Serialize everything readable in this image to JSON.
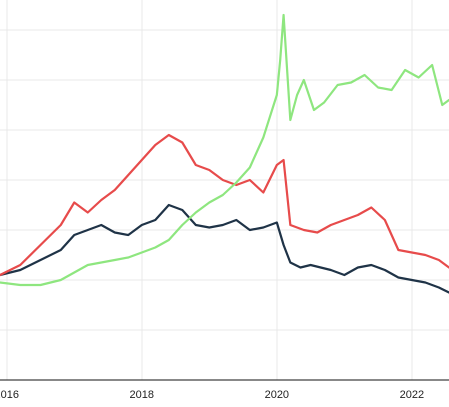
{
  "chart_data": {
    "type": "line",
    "title": "",
    "xlabel": "",
    "ylabel": "",
    "grid": true,
    "legend": "none",
    "x_ticks": [
      "2016",
      "2018",
      "2020",
      "2022"
    ],
    "x_tick_values": [
      2016,
      2018,
      2020,
      2022
    ],
    "xlim": [
      2015.9,
      2022.55
    ],
    "ylim": [
      0,
      7.6
    ],
    "colors": {
      "navy": "#1f3347",
      "red": "#e74b4b",
      "green": "#8ee67f",
      "grid": "#e9e9e9",
      "axis": "#111111",
      "tick": "#222222"
    },
    "series": [
      {
        "color": "#1f3347",
        "x": [
          2015.9,
          2016.2,
          2016.5,
          2016.8,
          2017.0,
          2017.2,
          2017.4,
          2017.6,
          2017.8,
          2018.0,
          2018.2,
          2018.4,
          2018.6,
          2018.8,
          2019.0,
          2019.2,
          2019.4,
          2019.6,
          2019.8,
          2020.0,
          2020.1,
          2020.2,
          2020.35,
          2020.5,
          2020.8,
          2021.0,
          2021.2,
          2021.4,
          2021.6,
          2021.8,
          2022.0,
          2022.2,
          2022.4,
          2022.55
        ],
        "values": [
          2.1,
          2.2,
          2.4,
          2.6,
          2.9,
          3.0,
          3.1,
          2.95,
          2.9,
          3.1,
          3.2,
          3.5,
          3.4,
          3.1,
          3.05,
          3.1,
          3.2,
          3.0,
          3.05,
          3.15,
          2.7,
          2.35,
          2.25,
          2.3,
          2.2,
          2.1,
          2.25,
          2.3,
          2.2,
          2.05,
          2.0,
          1.95,
          1.85,
          1.75
        ]
      },
      {
        "color": "#e74b4b",
        "x": [
          2015.9,
          2016.2,
          2016.5,
          2016.8,
          2017.0,
          2017.2,
          2017.4,
          2017.6,
          2017.8,
          2018.0,
          2018.2,
          2018.4,
          2018.6,
          2018.8,
          2019.0,
          2019.2,
          2019.4,
          2019.6,
          2019.8,
          2020.0,
          2020.1,
          2020.2,
          2020.4,
          2020.6,
          2020.8,
          2021.0,
          2021.2,
          2021.4,
          2021.6,
          2021.8,
          2022.0,
          2022.2,
          2022.4,
          2022.55
        ],
        "values": [
          2.1,
          2.3,
          2.7,
          3.1,
          3.55,
          3.35,
          3.6,
          3.8,
          4.1,
          4.4,
          4.7,
          4.9,
          4.75,
          4.3,
          4.2,
          4.0,
          3.9,
          4.0,
          3.75,
          4.3,
          4.4,
          3.1,
          3.0,
          2.95,
          3.1,
          3.2,
          3.3,
          3.45,
          3.2,
          2.6,
          2.55,
          2.5,
          2.4,
          2.25
        ]
      },
      {
        "color": "#8ee67f",
        "x": [
          2015.9,
          2016.2,
          2016.5,
          2016.8,
          2017.0,
          2017.2,
          2017.4,
          2017.6,
          2017.8,
          2018.0,
          2018.2,
          2018.4,
          2018.6,
          2018.8,
          2019.0,
          2019.2,
          2019.4,
          2019.6,
          2019.8,
          2020.0,
          2020.05,
          2020.1,
          2020.2,
          2020.3,
          2020.4,
          2020.55,
          2020.7,
          2020.9,
          2021.1,
          2021.3,
          2021.5,
          2021.7,
          2021.9,
          2022.1,
          2022.3,
          2022.45,
          2022.55
        ],
        "values": [
          1.95,
          1.9,
          1.9,
          2.0,
          2.15,
          2.3,
          2.35,
          2.4,
          2.45,
          2.55,
          2.65,
          2.8,
          3.1,
          3.35,
          3.55,
          3.7,
          3.95,
          4.25,
          4.85,
          5.7,
          6.4,
          7.3,
          5.2,
          5.7,
          6.0,
          5.4,
          5.55,
          5.9,
          5.95,
          6.1,
          5.85,
          5.8,
          6.2,
          6.05,
          6.3,
          5.5,
          5.6
        ]
      }
    ]
  }
}
